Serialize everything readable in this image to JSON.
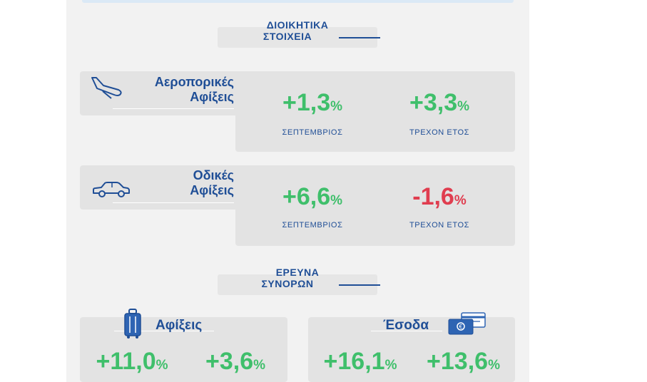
{
  "section_admin": {
    "line1": "ΔΙΟΙΚΗΤΙΚΑ",
    "line2": "ΣΤΟΙΧΕΙΑ"
  },
  "air": {
    "label_line1": "Αεροπορικές",
    "label_line2": "Αφίξεις",
    "month": {
      "value": "+1,3",
      "unit": "%",
      "caption": "ΣΕΠΤΕΜΒΡΙΟΣ",
      "color": "#3fbf6b"
    },
    "ytd": {
      "value": "+3,3",
      "unit": "%",
      "caption": "ΤΡΕΧΟΝ ΕΤΟΣ",
      "color": "#3fbf6b"
    }
  },
  "road": {
    "label_line1": "Οδικές",
    "label_line2": "Αφίξεις",
    "month": {
      "value": "+6,6",
      "unit": "%",
      "caption": "ΣΕΠΤΕΜΒΡΙΟΣ",
      "color": "#3fbf6b"
    },
    "ytd": {
      "value": "-1,6",
      "unit": "%",
      "caption": "ΤΡΕΧΟΝ ΕΤΟΣ",
      "color": "#e03d4f"
    }
  },
  "section_survey": {
    "line1": "ΕΡΕΥΝΑ",
    "line2": "ΣΥΝΟΡΩΝ"
  },
  "arrivals": {
    "label": "Αφίξεις",
    "month": {
      "value": "+11,0",
      "unit": "%"
    },
    "ytd": {
      "value": "+3,6",
      "unit": "%"
    }
  },
  "revenue": {
    "label": "Έσοδα",
    "month": {
      "value": "+16,1",
      "unit": "%"
    },
    "ytd": {
      "value": "+13,6",
      "unit": "%"
    }
  },
  "icons": [
    "airplane-icon",
    "car-icon",
    "luggage-icon",
    "money-card-icon"
  ],
  "colors": {
    "brand_blue": "#1f4e96",
    "positive": "#3fbf6b",
    "negative": "#e03d4f",
    "panel": "#f2f2f2",
    "box": "#e3e3e3"
  }
}
